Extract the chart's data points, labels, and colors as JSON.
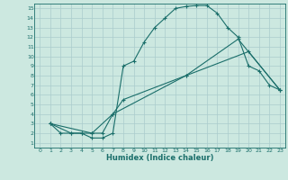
{
  "title": "",
  "xlabel": "Humidex (Indice chaleur)",
  "bg_color": "#cce8e0",
  "grid_color": "#aacccc",
  "line_color": "#1a6e6a",
  "xlim": [
    -0.5,
    23.5
  ],
  "ylim": [
    0.5,
    15.5
  ],
  "xticks": [
    0,
    1,
    2,
    3,
    4,
    5,
    6,
    7,
    8,
    9,
    10,
    11,
    12,
    13,
    14,
    15,
    16,
    17,
    18,
    19,
    20,
    21,
    22,
    23
  ],
  "yticks": [
    1,
    2,
    3,
    4,
    5,
    6,
    7,
    8,
    9,
    10,
    11,
    12,
    13,
    14,
    15
  ],
  "line1_x": [
    1,
    2,
    3,
    4,
    5,
    6,
    7,
    8,
    9,
    10,
    11,
    12,
    13,
    14,
    15,
    16,
    17,
    18,
    19,
    20,
    21,
    22,
    23
  ],
  "line1_y": [
    3,
    2,
    2,
    2,
    1.5,
    1.5,
    2,
    9,
    9.5,
    11.5,
    13,
    14,
    15,
    15.2,
    15.3,
    15.3,
    14.5,
    13,
    12,
    9,
    8.5,
    7,
    6.5
  ],
  "line2_x": [
    1,
    3,
    4,
    5,
    6,
    7,
    8,
    14,
    20,
    23
  ],
  "line2_y": [
    3,
    2,
    2,
    2,
    2,
    4,
    5.5,
    8,
    10.5,
    6.5
  ],
  "line3_x": [
    1,
    5,
    7,
    14,
    19,
    23
  ],
  "line3_y": [
    3,
    2,
    4,
    8,
    11.8,
    6.5
  ]
}
